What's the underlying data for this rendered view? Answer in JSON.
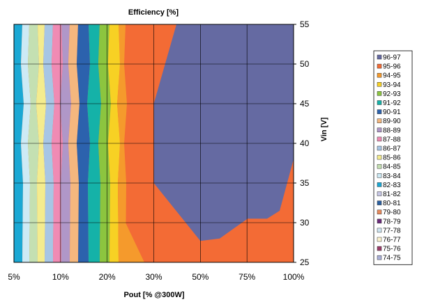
{
  "chart_data": {
    "type": "contour",
    "title": "Efficiency [%]",
    "xlabel": "Pout [% @300W]",
    "ylabel": "Vin  [V]",
    "x_categories": [
      "5%",
      "10%",
      "20%",
      "30%",
      "50%",
      "75%",
      "100%"
    ],
    "y_ticks": [
      "25",
      "30",
      "35",
      "40",
      "45",
      "50",
      "55"
    ],
    "ylim": [
      25,
      55
    ],
    "grid": true,
    "legend_position": "right",
    "legend": [
      {
        "label": "96-97",
        "color": "#656aa2"
      },
      {
        "label": "95-96",
        "color": "#f36b35"
      },
      {
        "label": "94-95",
        "color": "#f59a2c"
      },
      {
        "label": "93-94",
        "color": "#f7d124"
      },
      {
        "label": "92-93",
        "color": "#8cc53f"
      },
      {
        "label": "91-92",
        "color": "#15b2a8"
      },
      {
        "label": "90-91",
        "color": "#2c62ad"
      },
      {
        "label": "89-90",
        "color": "#f5b77e"
      },
      {
        "label": "88-89",
        "color": "#b097c8"
      },
      {
        "label": "87-88",
        "color": "#f08bb4"
      },
      {
        "label": "86-87",
        "color": "#a7c6e5"
      },
      {
        "label": "85-86",
        "color": "#f4ec8e"
      },
      {
        "label": "84-85",
        "color": "#c4e0b2"
      },
      {
        "label": "83-84",
        "color": "#cdeaf5"
      },
      {
        "label": "82-83",
        "color": "#1aa8d4"
      },
      {
        "label": "81-82",
        "color": "#c8c8e6"
      },
      {
        "label": "80-81",
        "color": "#2a5fa0"
      },
      {
        "label": "79-80",
        "color": "#e88a5c"
      },
      {
        "label": "78-79",
        "color": "#6a2a7a"
      },
      {
        "label": "77-78",
        "color": "#cfe6f2"
      },
      {
        "label": "76-77",
        "color": "#fcf3cf"
      },
      {
        "label": "75-76",
        "color": "#9a3b68"
      },
      {
        "label": "74-75",
        "color": "#aab0d8"
      }
    ],
    "left_bands_order": [
      "82-83",
      "83-84",
      "84-85",
      "85-86",
      "86-87",
      "87-88",
      "88-89",
      "89-90",
      "90-91",
      "91-92",
      "92-93",
      "93-94",
      "94-95"
    ],
    "region_96_97_boundary": [
      {
        "x": "20%",
        "vin": 55
      },
      {
        "x": "30%",
        "vin": 45
      },
      {
        "x": "30%",
        "vin": 35
      },
      {
        "x": "50%",
        "vin": 27.7
      },
      {
        "x": "75%",
        "vin": 30.5
      },
      {
        "x": "100%",
        "vin": 38
      }
    ]
  }
}
